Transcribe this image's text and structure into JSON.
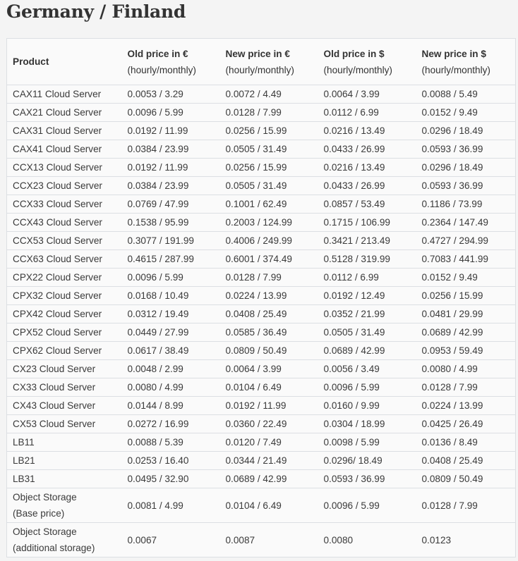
{
  "title": "Germany / Finland",
  "table": {
    "headers": [
      [
        "Product"
      ],
      [
        "Old price in €",
        "(hourly/monthly)"
      ],
      [
        "New price in €",
        "(hourly/monthly)"
      ],
      [
        "Old price in $",
        "(hourly/monthly)"
      ],
      [
        "New price in $",
        "(hourly/monthly)"
      ]
    ],
    "rows": [
      [
        [
          "CAX11 Cloud Server"
        ],
        "0.0053 / 3.29",
        "0.0072 / 4.49",
        "0.0064 / 3.99",
        "0.0088 / 5.49"
      ],
      [
        [
          "CAX21 Cloud Server"
        ],
        "0.0096 / 5.99",
        "0.0128 / 7.99",
        "0.0112 / 6.99",
        "0.0152 / 9.49"
      ],
      [
        [
          "CAX31 Cloud Server"
        ],
        "0.0192 / 11.99",
        "0.0256 / 15.99",
        "0.0216 / 13.49",
        "0.0296 / 18.49"
      ],
      [
        [
          "CAX41 Cloud Server"
        ],
        "0.0384 / 23.99",
        "0.0505 / 31.49",
        "0.0433 / 26.99",
        "0.0593 / 36.99"
      ],
      [
        [
          "CCX13 Cloud Server"
        ],
        "0.0192 / 11.99",
        "0.0256 / 15.99",
        "0.0216 / 13.49",
        "0.0296 / 18.49"
      ],
      [
        [
          "CCX23 Cloud Server"
        ],
        "0.0384 / 23.99",
        "0.0505 / 31.49",
        "0.0433 / 26.99",
        "0.0593 / 36.99"
      ],
      [
        [
          "CCX33 Cloud Server"
        ],
        "0.0769 / 47.99",
        "0.1001 / 62.49",
        "0.0857 / 53.49",
        "0.1186 / 73.99"
      ],
      [
        [
          "CCX43 Cloud Server"
        ],
        "0.1538 / 95.99",
        "0.2003 / 124.99",
        "0.1715 / 106.99",
        "0.2364 / 147.49"
      ],
      [
        [
          "CCX53 Cloud Server"
        ],
        "0.3077 / 191.99",
        "0.4006 / 249.99",
        "0.3421 / 213.49",
        "0.4727 / 294.99"
      ],
      [
        [
          "CCX63 Cloud Server"
        ],
        "0.4615 / 287.99",
        "0.6001 / 374.49",
        "0.5128 / 319.99",
        "0.7083 / 441.99"
      ],
      [
        [
          "CPX22 Cloud Server"
        ],
        "0.0096 / 5.99",
        "0.0128 / 7.99",
        "0.0112 / 6.99",
        "0.0152 / 9.49"
      ],
      [
        [
          "CPX32 Cloud Server"
        ],
        "0.0168 / 10.49",
        "0.0224 / 13.99",
        "0.0192 / 12.49",
        "0.0256 / 15.99"
      ],
      [
        [
          "CPX42 Cloud Server"
        ],
        "0.0312 / 19.49",
        "0.0408 / 25.49",
        "0.0352 / 21.99",
        "0.0481 / 29.99"
      ],
      [
        [
          "CPX52 Cloud Server"
        ],
        "0.0449 / 27.99",
        "0.0585 / 36.49",
        "0.0505 / 31.49",
        "0.0689 / 42.99"
      ],
      [
        [
          "CPX62 Cloud Server"
        ],
        "0.0617 / 38.49",
        "0.0809 / 50.49",
        "0.0689 / 42.99",
        "0.0953 / 59.49"
      ],
      [
        [
          "CX23 Cloud Server"
        ],
        "0.0048 / 2.99",
        "0.0064 / 3.99",
        "0.0056 / 3.49",
        "0.0080 / 4.99"
      ],
      [
        [
          "CX33 Cloud Server"
        ],
        "0.0080 / 4.99",
        "0.0104 / 6.49",
        "0.0096 / 5.99",
        "0.0128 / 7.99"
      ],
      [
        [
          "CX43 Cloud Server"
        ],
        "0.0144 / 8.99",
        "0.0192 / 11.99",
        "0.0160 / 9.99",
        "0.0224 / 13.99"
      ],
      [
        [
          "CX53 Cloud Server"
        ],
        "0.0272 / 16.99",
        "0.0360 / 22.49",
        "0.0304 / 18.99",
        "0.0425 / 26.49"
      ],
      [
        [
          "LB11"
        ],
        "0.0088 / 5.39",
        "0.0120 / 7.49",
        "0.0098 / 5.99",
        "0.0136 / 8.49"
      ],
      [
        [
          "LB21"
        ],
        "0.0253 / 16.40",
        "0.0344 / 21.49",
        "0.0296/ 18.49",
        "0.0408 / 25.49"
      ],
      [
        [
          "LB31"
        ],
        "0.0495 / 32.90",
        "0.0689 / 42.99",
        "0.0593 / 36.99",
        "0.0809 / 50.49"
      ],
      [
        [
          "Object Storage",
          "(Base price)"
        ],
        "0.0081 / 4.99",
        "0.0104 / 6.49",
        "0.0096 / 5.99",
        "0.0128 / 7.99"
      ],
      [
        [
          "Object Storage",
          "(additional storage)"
        ],
        "0.0067",
        "0.0087",
        "0.0080",
        "0.0123"
      ]
    ]
  }
}
